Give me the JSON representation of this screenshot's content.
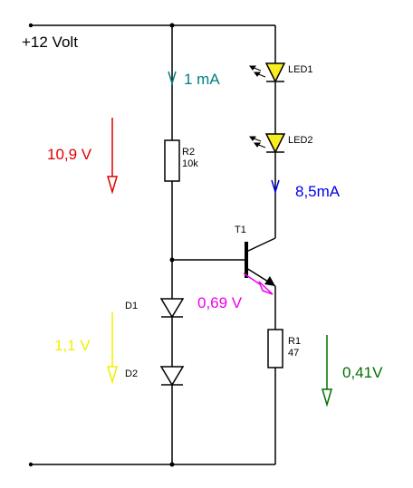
{
  "supply": {
    "label": "+12 Volt"
  },
  "resistors": {
    "r2": {
      "ref": "R2",
      "value": "10k"
    },
    "r1": {
      "ref": "R1",
      "value": "47"
    }
  },
  "leds": {
    "led1": {
      "label": "LED1"
    },
    "led2": {
      "label": "LED2"
    }
  },
  "transistor": {
    "ref": "T1"
  },
  "diodes": {
    "d1": {
      "label": "D1"
    },
    "d2": {
      "label": "D2"
    }
  },
  "annotations": {
    "current_r2": "1 mA",
    "voltage_r2": "10,9 V",
    "current_led": "8,5mA",
    "voltage_be": "0,69 V",
    "voltage_diodes": "1,1 V",
    "voltage_r1": "0,41V"
  },
  "colors": {
    "wire": "#000000",
    "led_fill": "#f7ee1f",
    "current_r2": "#008080",
    "voltage_r2": "#e00000",
    "current_led": "#0000ee",
    "voltage_be": "#ee00ee",
    "voltage_diodes": "#f0f000",
    "voltage_r1": "#007000"
  }
}
